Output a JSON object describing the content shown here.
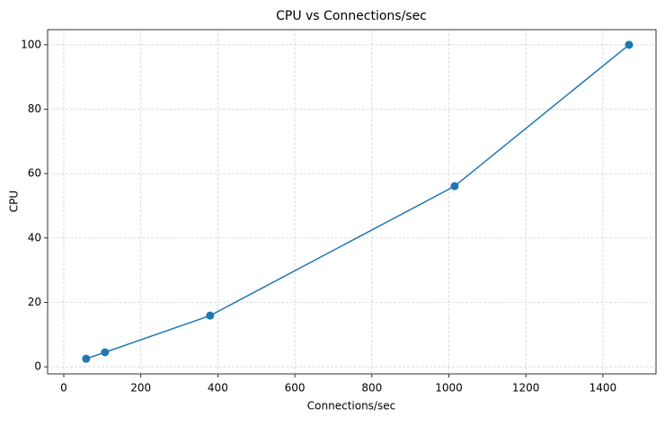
{
  "chart_data": {
    "type": "line",
    "title": "CPU vs Connections/sec",
    "x_label": "Connections/sec",
    "y_label": "CPU",
    "x": [
      58,
      107,
      380,
      1015,
      1468
    ],
    "series": [
      {
        "name": "CPU",
        "color": "#1f77b4",
        "values": [
          2.5,
          4.5,
          15.9,
          56.1,
          100
        ]
      }
    ],
    "xlim": [
      -42,
      1538
    ],
    "ylim": [
      -2.2,
      104.7
    ],
    "xticks": [
      0,
      200,
      400,
      600,
      800,
      1000,
      1200,
      1400
    ],
    "yticks": [
      0,
      20,
      40,
      60,
      80,
      100
    ],
    "grid": true,
    "markers": true
  }
}
